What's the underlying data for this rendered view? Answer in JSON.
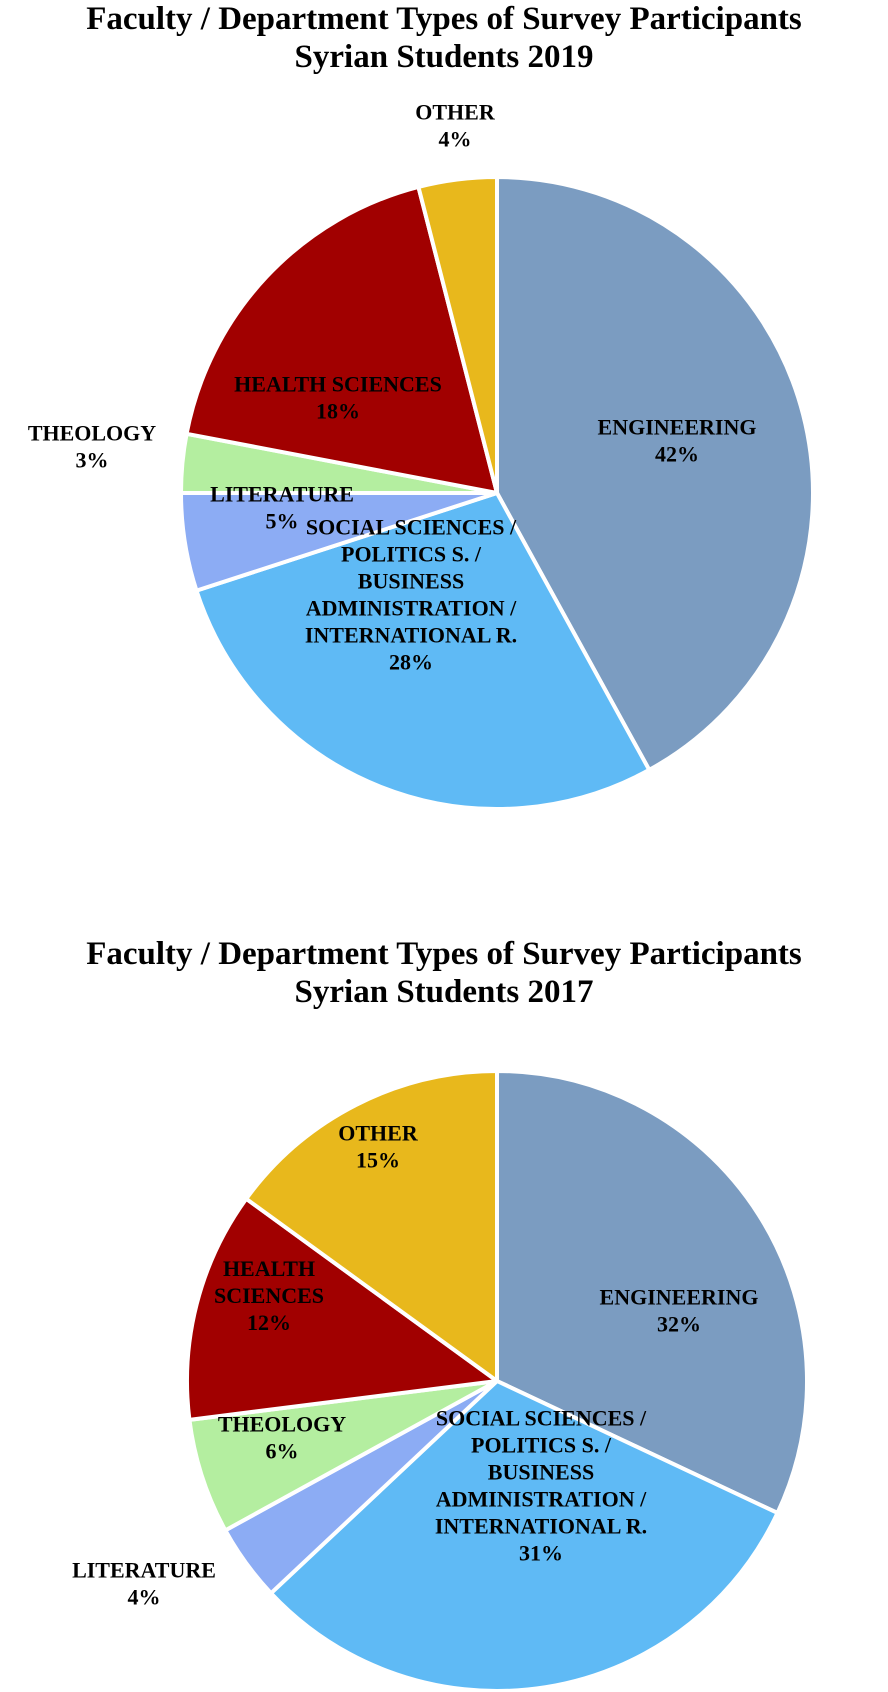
{
  "chart_data": [
    {
      "type": "pie",
      "title": "Faculty / Department Types of Survey Participants",
      "subtitle": "Syrian Students 2019",
      "slices": [
        {
          "label": "ENGINEERING",
          "label_lines": [
            "ENGINEERING"
          ],
          "value": 42,
          "value_label": "42%",
          "color": "#7b9cc1"
        },
        {
          "label": "SOCIAL SCIENCES / POLITICS S. / BUSINESS ADMINISTRATION / INTERNATIONAL R.",
          "label_lines": [
            "SOCIAL SCIENCES /",
            "POLITICS S. /",
            "BUSINESS",
            "ADMINISTRATION /",
            "INTERNATIONAL R."
          ],
          "value": 28,
          "value_label": "28%",
          "color": "#5fbaf5"
        },
        {
          "label": "LITERATURE",
          "label_lines": [
            "LITERATURE"
          ],
          "value": 5,
          "value_label": "5%",
          "color": "#8cacf4"
        },
        {
          "label": "THEOLOGY",
          "label_lines": [
            "THEOLOGY"
          ],
          "value": 3,
          "value_label": "3%",
          "color": "#b4eea0"
        },
        {
          "label": "HEALTH SCIENCES",
          "label_lines": [
            "HEALTH SCIENCES"
          ],
          "value": 18,
          "value_label": "18%",
          "color": "#a10000"
        },
        {
          "label": "OTHER",
          "label_lines": [
            "OTHER"
          ],
          "value": 4,
          "value_label": "4%",
          "color": "#e8b81c"
        }
      ]
    },
    {
      "type": "pie",
      "title": "Faculty / Department Types of Survey Participants",
      "subtitle": "Syrian Students 2017",
      "slices": [
        {
          "label": "ENGINEERING",
          "label_lines": [
            "ENGINEERING"
          ],
          "value": 32,
          "value_label": "32%",
          "color": "#7b9cc1"
        },
        {
          "label": "SOCIAL SCIENCES / POLITICS S. / BUSINESS ADMINISTRATION / INTERNATIONAL R.",
          "label_lines": [
            "SOCIAL SCIENCES /",
            "POLITICS S. /",
            "BUSINESS",
            "ADMINISTRATION /",
            "INTERNATIONAL R."
          ],
          "value": 31,
          "value_label": "31%",
          "color": "#5fbaf5"
        },
        {
          "label": "LITERATURE",
          "label_lines": [
            "LITERATURE"
          ],
          "value": 4,
          "value_label": "4%",
          "color": "#8cacf4"
        },
        {
          "label": "THEOLOGY",
          "label_lines": [
            "THEOLOGY"
          ],
          "value": 6,
          "value_label": "6%",
          "color": "#b4eea0"
        },
        {
          "label": "HEALTH SCIENCES",
          "label_lines": [
            "HEALTH",
            "SCIENCES"
          ],
          "value": 12,
          "value_label": "12%",
          "color": "#a10000"
        },
        {
          "label": "OTHER",
          "label_lines": [
            "OTHER"
          ],
          "value": 15,
          "value_label": "15%",
          "color": "#e8b81c"
        }
      ]
    }
  ]
}
